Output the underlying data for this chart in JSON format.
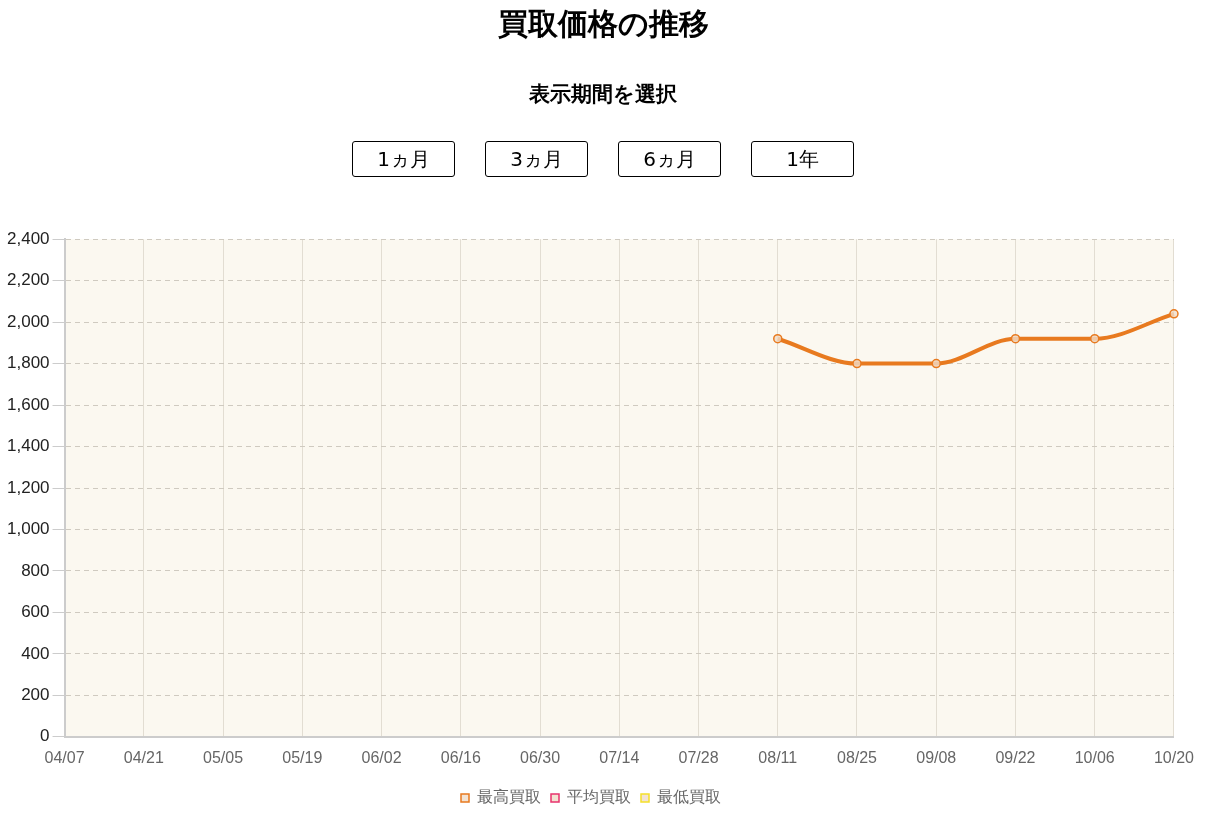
{
  "chart_data": {
    "type": "line",
    "title": "買取価格の推移",
    "subtitle": "表示期間を選択",
    "annotations": [
      "1ヵ月",
      "3ヵ月",
      "6ヵ月",
      "1年"
    ],
    "categories": [
      "04/07",
      "04/21",
      "05/05",
      "05/19",
      "06/02",
      "06/16",
      "06/30",
      "07/14",
      "07/28",
      "08/11",
      "08/25",
      "09/08",
      "09/22",
      "10/06",
      "10/20"
    ],
    "series": [
      {
        "name": "最高買取",
        "color": "#e87a1f",
        "values": [
          null,
          null,
          null,
          null,
          null,
          null,
          null,
          null,
          null,
          1920,
          1800,
          1800,
          1920,
          1920,
          2040
        ]
      },
      {
        "name": "平均買取",
        "color": "#e8336d",
        "values": [
          null,
          null,
          null,
          null,
          null,
          null,
          null,
          null,
          null,
          null,
          null,
          null,
          null,
          null,
          null
        ]
      },
      {
        "name": "最低買取",
        "color": "#f5e02a",
        "values": [
          null,
          null,
          null,
          null,
          null,
          null,
          null,
          null,
          null,
          null,
          null,
          null,
          null,
          null,
          null
        ]
      }
    ],
    "ylim": [
      0,
      2400
    ],
    "yticks": [
      0,
      200,
      400,
      600,
      800,
      {
        "value": 1000,
        "label": "1,000"
      },
      {
        "value": 1200,
        "label": "1,200"
      },
      {
        "value": 1400,
        "label": "1,400"
      },
      {
        "value": 1600,
        "label": "1,600"
      },
      {
        "value": 1800,
        "label": "1,800"
      },
      {
        "value": 2000,
        "label": "2,000"
      },
      {
        "value": 2200,
        "label": "2,200"
      },
      {
        "value": 2400,
        "label": "2,400"
      }
    ],
    "grid": true,
    "legend": "bottom",
    "marker": "circle",
    "line_style": "solid"
  }
}
